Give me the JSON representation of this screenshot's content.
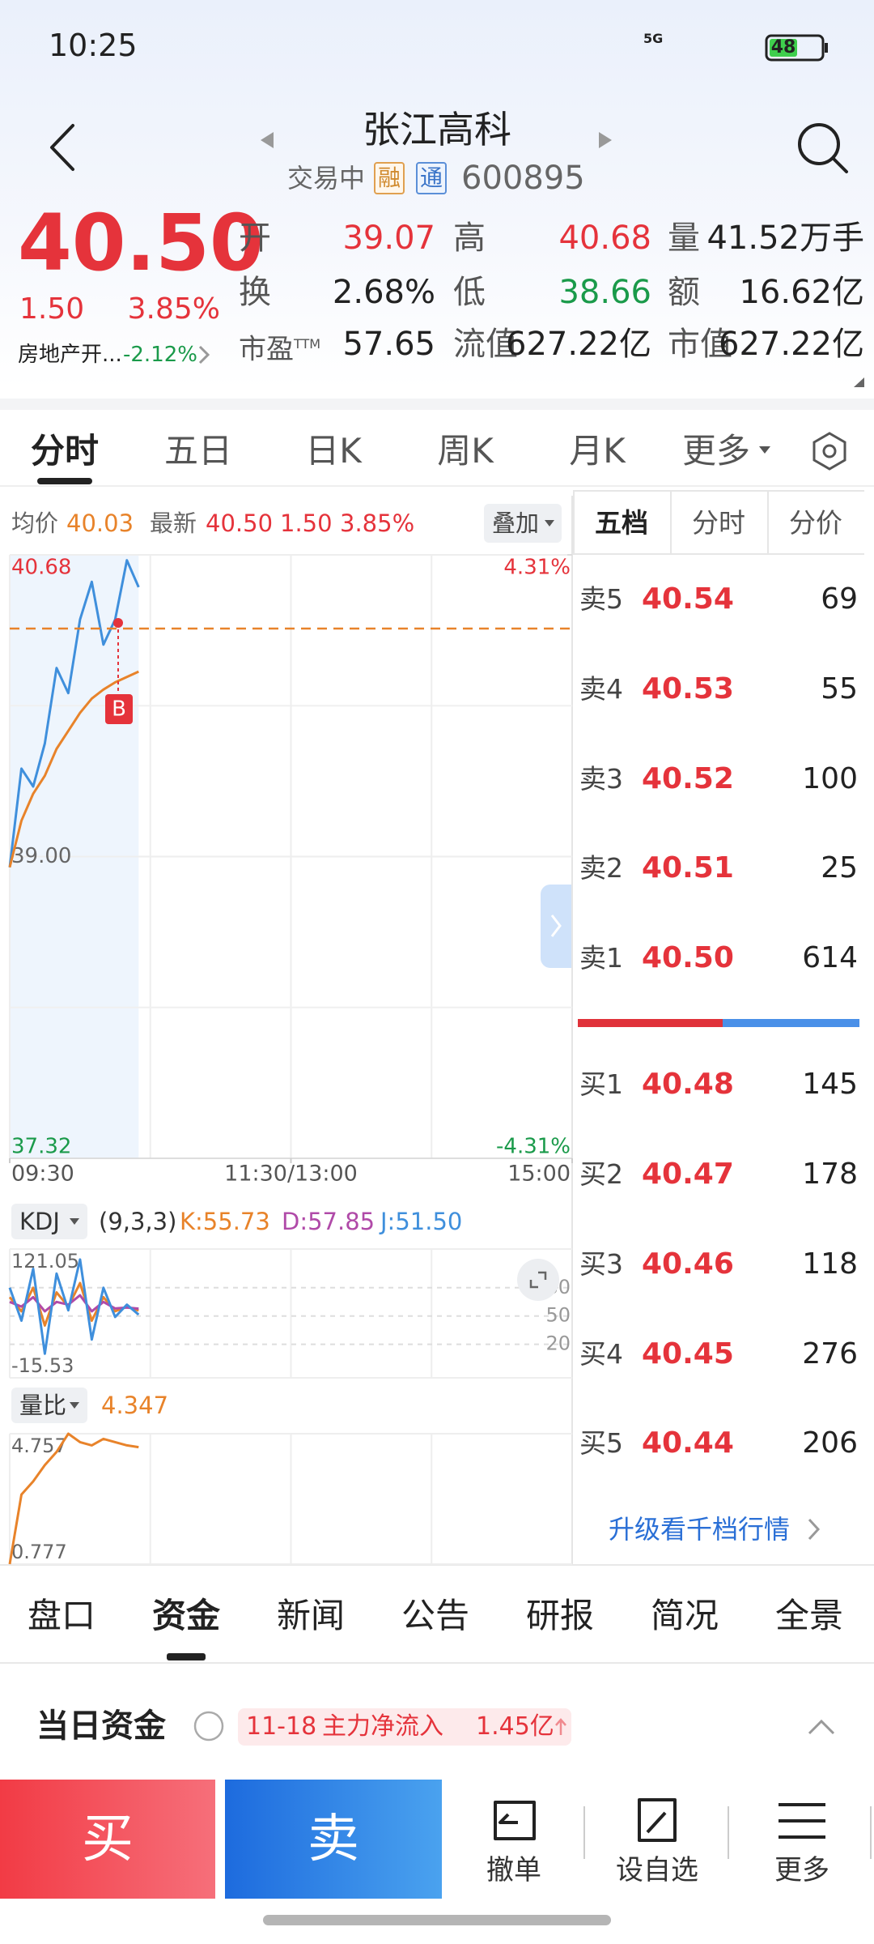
{
  "status_bar": {
    "time": "10:25",
    "network": "5G",
    "battery": "48"
  },
  "header": {
    "title": "张江高科",
    "status": "交易中",
    "badges": [
      "融",
      "通"
    ],
    "code": "600895"
  },
  "quote": {
    "price": "40.50",
    "change": "1.50",
    "change_pct": "3.85%",
    "sector": "房地产开...",
    "sector_change": "-2.12%",
    "stats": [
      {
        "label": "开",
        "value": "39.07",
        "tone": "up"
      },
      {
        "label": "高",
        "value": "40.68",
        "tone": "up"
      },
      {
        "label": "量",
        "value": "41.52万手",
        "tone": "flat"
      },
      {
        "label": "换",
        "value": "2.68%",
        "tone": "flat"
      },
      {
        "label": "低",
        "value": "38.66",
        "tone": "down"
      },
      {
        "label": "额",
        "value": "16.62亿",
        "tone": "flat"
      },
      {
        "label": "市盈",
        "label_sup": "TTM",
        "value": "57.65",
        "tone": "flat"
      },
      {
        "label": "流值",
        "value": "627.22亿",
        "tone": "flat"
      },
      {
        "label": "市值",
        "value": "627.22亿",
        "tone": "flat"
      }
    ]
  },
  "tabs": {
    "items": [
      "分时",
      "五日",
      "日K",
      "周K",
      "月K",
      "更多"
    ],
    "active": 0
  },
  "chart_info": {
    "avg": "40.03",
    "overlay": "叠加"
  },
  "chart_data": [
    {
      "type": "line",
      "annotation": "B",
      "x": [
        "09:30",
        "09:35",
        "09:40",
        "09:45",
        "09:50",
        "09:55",
        "10:00",
        "10:05",
        "10:10",
        "10:15",
        "10:20",
        "10:25"
      ],
      "x_axis_labels": [
        "09:30",
        "11:30/13:00",
        "15:00"
      ],
      "series": [
        {
          "name": "最新",
          "color": "#3f8fdc",
          "values": [
            38.94,
            39.49,
            39.39,
            39.63,
            40.05,
            39.91,
            40.32,
            40.53,
            40.18,
            40.32,
            40.65,
            40.5
          ]
        },
        {
          "name": "均价",
          "color": "#e8832a",
          "values": [
            38.94,
            39.2,
            39.35,
            39.45,
            39.6,
            39.7,
            39.8,
            39.88,
            39.93,
            39.97,
            40.0,
            40.03
          ]
        }
      ],
      "ylim": [
        37.32,
        40.68
      ],
      "yticks": [
        40.68,
        {
          "value": 39,
          "label": "39.00"
        },
        37.32
      ],
      "y2lim": [
        -4.31,
        4.31
      ],
      "y2ticks": [
        {
          "value": 4.31,
          "label": "4.31%"
        },
        {
          "value": -4.31,
          "label": "-4.31%"
        }
      ],
      "grid": true
    },
    {
      "type": "line",
      "title": "KDJ",
      "params": "(9,3,3)",
      "x": [
        "09:30",
        "09:35",
        "09:40",
        "09:45",
        "09:50",
        "09:55",
        "10:00",
        "10:05",
        "10:10",
        "10:15",
        "10:20",
        "10:25"
      ],
      "series": [
        {
          "name": "K",
          "legend": "K:55.73",
          "color": "#e8832a",
          "values": [
            70,
            55,
            80,
            40,
            75,
            60,
            85,
            45,
            70,
            55,
            60,
            55.73
          ]
        },
        {
          "name": "D",
          "legend": "D:57.85",
          "color": "#b04aa8",
          "values": [
            65,
            60,
            70,
            55,
            65,
            62,
            72,
            55,
            65,
            58,
            59,
            57.85
          ]
        },
        {
          "name": "J",
          "legend": "J:51.50",
          "color": "#3f8fdc",
          "values": [
            80,
            45,
            100,
            10,
            95,
            56,
            110,
            25,
            80,
            49,
            62,
            51.5
          ]
        }
      ],
      "ylim": [
        -15.53,
        121.05
      ],
      "yticks": [
        121.05,
        -15.53
      ],
      "y2lim": [
        -15.53,
        121.05
      ],
      "y2ticks": [
        80,
        50,
        20
      ]
    },
    {
      "type": "line",
      "title": "量比",
      "latest": 4.347,
      "x": [
        "09:30",
        "09:35",
        "09:40",
        "09:45",
        "09:50",
        "09:55",
        "10:00",
        "10:05",
        "10:10",
        "10:15",
        "10:20",
        "10:25"
      ],
      "series": [
        {
          "name": "量比",
          "color": "#e8832a",
          "values": [
            0.777,
            2.9,
            3.3,
            3.8,
            4.2,
            4.757,
            4.5,
            4.4,
            4.6,
            4.5,
            4.4,
            4.347
          ]
        }
      ],
      "ylim": [
        0.777,
        4.757
      ],
      "yticks": [
        4.757,
        0.777
      ]
    }
  ],
  "order_book": {
    "tabs": [
      "五档",
      "分时",
      "分价"
    ],
    "asks": [
      {
        "label": "卖5",
        "price": "40.54",
        "volume": "69"
      },
      {
        "label": "卖4",
        "price": "40.53",
        "volume": "55"
      },
      {
        "label": "卖3",
        "price": "40.52",
        "volume": "100"
      },
      {
        "label": "卖2",
        "price": "40.51",
        "volume": "25"
      },
      {
        "label": "卖1",
        "price": "40.50",
        "volume": "614"
      }
    ],
    "bids": [
      {
        "label": "买1",
        "price": "40.48",
        "volume": "145"
      },
      {
        "label": "买2",
        "price": "40.47",
        "volume": "178"
      },
      {
        "label": "买3",
        "price": "40.46",
        "volume": "118"
      },
      {
        "label": "买4",
        "price": "40.45",
        "volume": "276"
      },
      {
        "label": "买5",
        "price": "40.44",
        "volume": "206"
      }
    ],
    "upgrade": "升级看千档行情"
  },
  "bottom_tabs": {
    "items": [
      "盘口",
      "资金",
      "新闻",
      "公告",
      "研报",
      "简况",
      "全景"
    ],
    "active": 1
  },
  "fund": {
    "title": "当日资金",
    "date": "11-18",
    "label": "主力净流入",
    "value": "1.45亿"
  },
  "action_bar": {
    "buy": "买",
    "sell": "卖",
    "actions": [
      "撤单",
      "设自选",
      "更多"
    ]
  }
}
